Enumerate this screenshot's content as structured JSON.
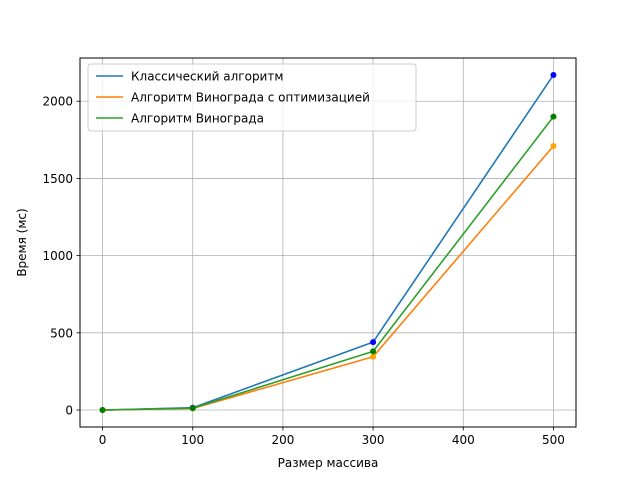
{
  "chart_data": {
    "type": "line",
    "title": "",
    "xlabel": "Размер массива",
    "ylabel": "Время (мс)",
    "x": [
      0,
      100,
      300,
      500
    ],
    "xlim": [
      -25,
      525
    ],
    "ylim": [
      -110,
      2280
    ],
    "xticks": [
      0,
      100,
      200,
      300,
      400,
      500
    ],
    "yticks": [
      0,
      500,
      1000,
      1500,
      2000
    ],
    "grid": true,
    "legend_position": "upper-left",
    "series": [
      {
        "name": "Классический алгоритм",
        "color": "#1f77b4",
        "marker_color": "#0000ff",
        "values": [
          0,
          15,
          440,
          2170
        ]
      },
      {
        "name": "Алгоритм Винограда с оптимизацией",
        "color": "#ff7f0e",
        "marker_color": "#ffa500",
        "values": [
          0,
          10,
          345,
          1710
        ]
      },
      {
        "name": "Алгоритм Винограда",
        "color": "#2ca02c",
        "marker_color": "#008000",
        "values": [
          0,
          12,
          380,
          1900
        ]
      }
    ]
  }
}
